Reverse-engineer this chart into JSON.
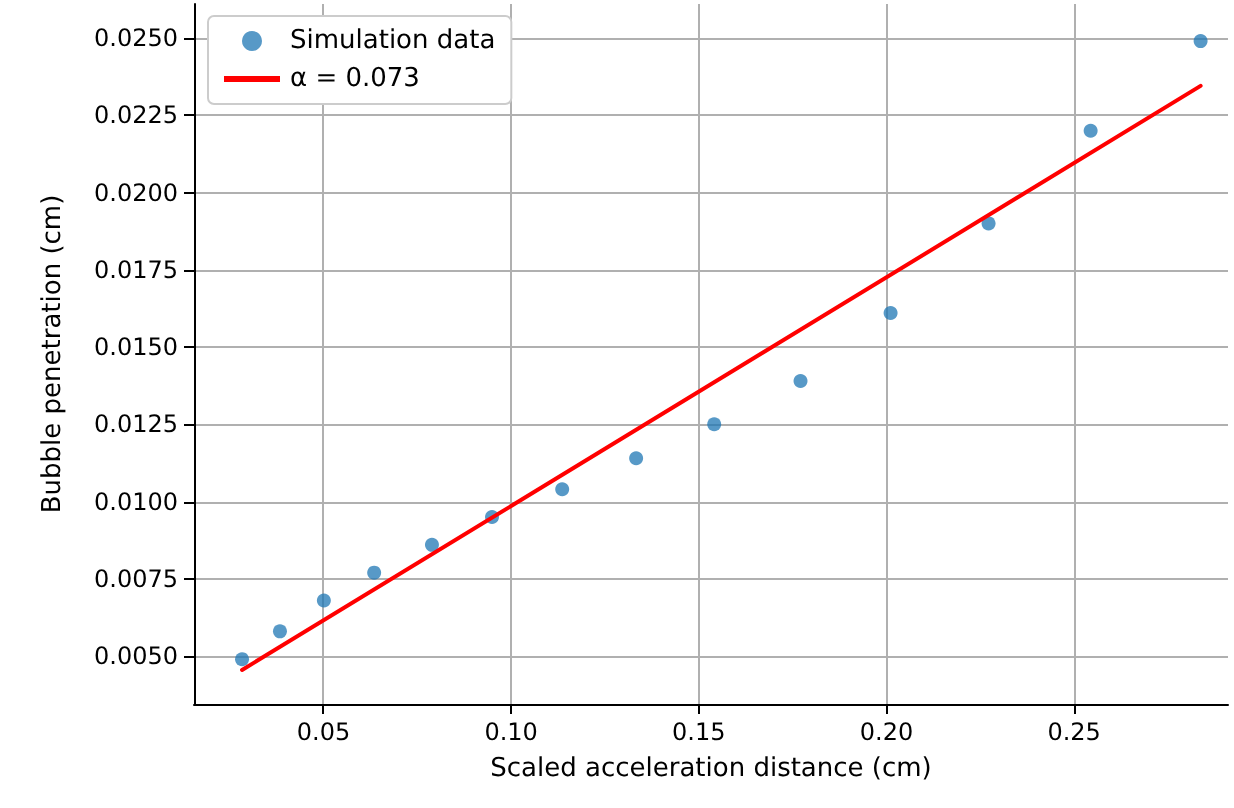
{
  "chart_data": {
    "type": "scatter",
    "xlabel": "Scaled acceleration distance (cm)",
    "ylabel": "Bubble penetration (cm)",
    "series": [
      {
        "name": "Simulation data",
        "color": "#1f77b4",
        "marker": "circle",
        "x": [
          0.0283,
          0.0384,
          0.0501,
          0.0635,
          0.0789,
          0.0949,
          0.1136,
          0.1333,
          0.1541,
          0.1771,
          0.2011,
          0.2272,
          0.2544,
          0.2837
        ],
        "values": [
          0.0049,
          0.0058,
          0.0068,
          0.0077,
          0.0086,
          0.0095,
          0.0104,
          0.0114,
          0.0125,
          0.0139,
          0.0161,
          0.019,
          0.022,
          0.0249
        ]
      },
      {
        "name": "α = 0.073",
        "type": "line",
        "color": "#ff0000",
        "marker": "none",
        "x": [
          0.0283,
          0.2837
        ],
        "values": [
          0.00455,
          0.02345
        ]
      }
    ],
    "xlim": [
      0.0155,
      0.291
    ],
    "ylim": [
      0.00345,
      0.0261
    ],
    "xticks": [
      {
        "value": 0.05,
        "label": "0.05"
      },
      {
        "value": 0.1,
        "label": "0.10"
      },
      {
        "value": 0.15,
        "label": "0.15"
      },
      {
        "value": 0.2,
        "label": "0.20"
      },
      {
        "value": 0.25,
        "label": "0.25"
      }
    ],
    "yticks": [
      {
        "value": 0.005,
        "label": "0.0050"
      },
      {
        "value": 0.0075,
        "label": "0.0075"
      },
      {
        "value": 0.01,
        "label": "0.0100"
      },
      {
        "value": 0.0125,
        "label": "0.0125"
      },
      {
        "value": 0.015,
        "label": "0.0150"
      },
      {
        "value": 0.0175,
        "label": "0.0175"
      },
      {
        "value": 0.02,
        "label": "0.0200"
      },
      {
        "value": 0.0225,
        "label": "0.0225"
      },
      {
        "value": 0.025,
        "label": "0.0250"
      }
    ],
    "grid": true,
    "legend": "top left"
  }
}
